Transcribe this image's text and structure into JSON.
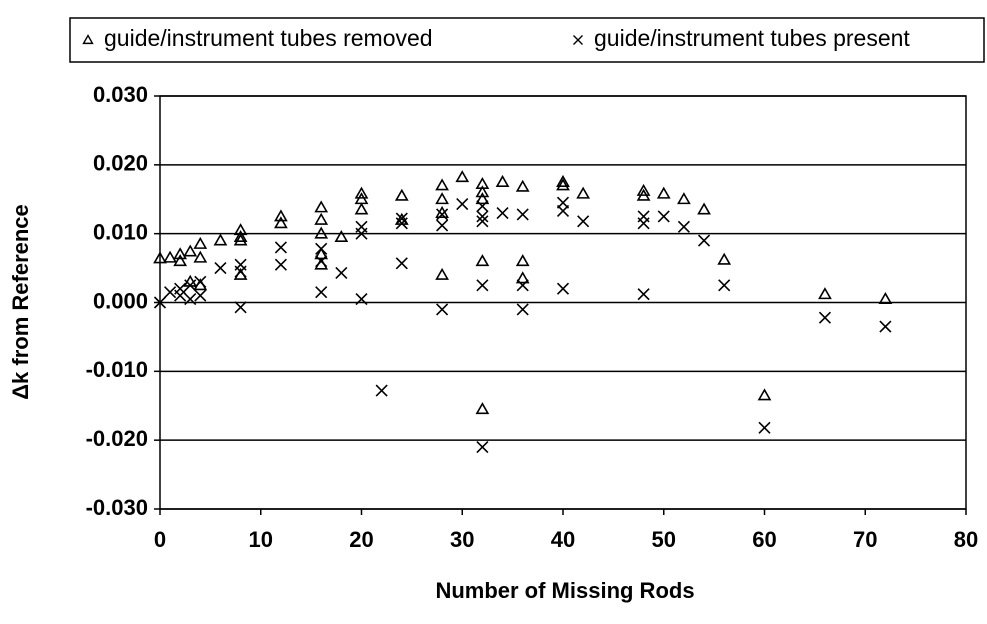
{
  "chart_data": {
    "type": "scatter",
    "xlabel": "Number of Missing Rods",
    "ylabel": "Δk from Reference",
    "series": [
      {
        "name": "guide/instrument tubes removed",
        "color": "#000000",
        "marker": "triangle",
        "x": [
          0,
          1,
          2,
          2,
          3,
          3,
          4,
          4,
          4,
          6,
          8,
          8,
          8,
          8,
          12,
          12,
          16,
          16,
          16,
          16,
          16,
          18,
          20,
          20,
          20,
          24,
          24,
          28,
          28,
          28,
          28,
          30,
          32,
          32,
          32,
          32,
          32,
          34,
          36,
          36,
          36,
          40,
          40,
          42,
          48,
          48,
          50,
          52,
          54,
          56,
          60,
          66,
          72
        ],
        "values": [
          0.0064,
          0.0065,
          0.007,
          0.006,
          0.0074,
          0.003,
          0.0085,
          0.0065,
          0.0025,
          0.009,
          0.0105,
          0.0095,
          0.009,
          0.004,
          0.0125,
          0.0115,
          0.0138,
          0.012,
          0.01,
          0.007,
          0.0055,
          0.0095,
          0.0158,
          0.015,
          0.0135,
          0.0155,
          0.012,
          0.017,
          0.015,
          0.013,
          0.004,
          0.0182,
          0.0172,
          0.016,
          0.015,
          0.006,
          -0.0155,
          0.0175,
          0.0168,
          0.006,
          0.0035,
          0.0175,
          0.017,
          0.0158,
          0.0162,
          0.0155,
          0.0158,
          0.015,
          0.0135,
          0.0062,
          -0.0135,
          0.0012,
          0.0005
        ]
      },
      {
        "name": "guide/instrument tubes present",
        "color": "#000000",
        "marker": "x",
        "x": [
          0,
          1,
          2,
          2,
          3,
          3,
          4,
          4,
          6,
          8,
          8,
          8,
          12,
          12,
          16,
          16,
          16,
          18,
          20,
          20,
          20,
          22,
          24,
          24,
          24,
          28,
          28,
          28,
          30,
          32,
          32,
          32,
          32,
          32,
          34,
          36,
          36,
          36,
          40,
          40,
          40,
          42,
          48,
          48,
          48,
          50,
          52,
          54,
          56,
          60,
          66,
          72
        ],
        "values": [
          0.0,
          0.0015,
          0.002,
          0.001,
          0.0025,
          0.0005,
          0.003,
          0.001,
          0.005,
          0.0055,
          0.0045,
          -0.0007,
          0.008,
          0.0055,
          0.0078,
          0.006,
          0.0015,
          0.0043,
          0.011,
          0.01,
          0.0005,
          -0.0128,
          0.0122,
          0.0115,
          0.0057,
          0.0128,
          0.0112,
          -0.001,
          0.0143,
          0.014,
          0.0125,
          0.0118,
          0.0025,
          -0.021,
          0.013,
          0.0128,
          0.0025,
          -0.001,
          0.0145,
          0.0133,
          0.002,
          0.0118,
          0.0125,
          0.0115,
          0.0012,
          0.0125,
          0.011,
          0.009,
          0.0025,
          -0.0182,
          -0.0022,
          -0.0035
        ]
      }
    ],
    "xlim": [
      0,
      80
    ],
    "xticks": [
      0,
      10,
      20,
      30,
      40,
      50,
      60,
      70,
      80
    ],
    "ylim": [
      -0.03,
      0.03
    ],
    "yticks": [
      {
        "value": -0.03,
        "label": "-0.030"
      },
      {
        "value": -0.02,
        "label": "-0.020"
      },
      {
        "value": -0.01,
        "label": "-0.010"
      },
      {
        "value": 0,
        "label": "0.000"
      },
      {
        "value": 0.01,
        "label": "0.010"
      },
      {
        "value": 0.02,
        "label": "0.020"
      },
      {
        "value": 0.03,
        "label": "0.030"
      }
    ],
    "grid": true,
    "legend": "top"
  }
}
